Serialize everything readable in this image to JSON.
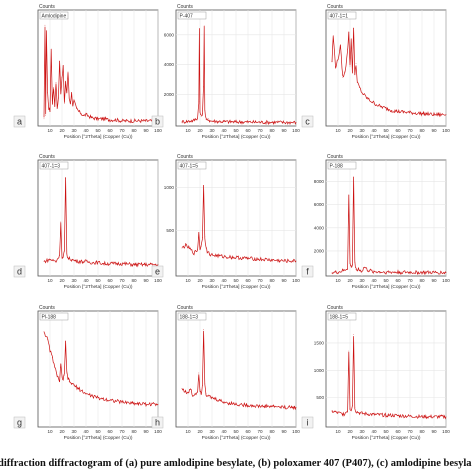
{
  "caption": "diffraction diffractogram of (a) pure amlodipine besylate, (b) poloxamer 407 (P407), (c) amlodipine besyla",
  "colors": {
    "trace": "#cc1111",
    "frame": "#555555",
    "grid": "#e6e6e6",
    "label_box": "#ffffff"
  },
  "chart_data": [
    {
      "panel": "a",
      "type": "line",
      "tag": "Amlodipine",
      "ylabel": "Counts",
      "xlabel": "Position [°2Theta] (Copper (Cu))",
      "yticks": [],
      "xlim": [
        0,
        100
      ],
      "ylim": [
        0,
        100
      ],
      "x": [
        5,
        5.8,
        6.4,
        7,
        8,
        9,
        10,
        11,
        12,
        13,
        14,
        15,
        16,
        17,
        18,
        19,
        20,
        21,
        22,
        23,
        24,
        25,
        26,
        27,
        28,
        29,
        30,
        32,
        34,
        36,
        38,
        40,
        45,
        50,
        55,
        60,
        65,
        70,
        75,
        80,
        85,
        90,
        95,
        100
      ],
      "y": [
        5,
        95,
        8,
        90,
        30,
        15,
        12,
        72,
        20,
        35,
        18,
        40,
        15,
        25,
        60,
        30,
        45,
        55,
        20,
        40,
        30,
        50,
        25,
        20,
        30,
        18,
        22,
        15,
        12,
        10,
        8,
        9,
        6,
        5,
        5,
        4,
        4,
        3,
        3,
        3,
        3,
        3,
        3,
        3
      ]
    },
    {
      "panel": "b",
      "type": "line",
      "tag": "P-407",
      "ylabel": "Counts",
      "xlabel": "Position [°2Theta] (Copper (Cu))",
      "yticks": [
        2000,
        4000,
        6000
      ],
      "xlim": [
        0,
        100
      ],
      "ylim": [
        0,
        7000
      ],
      "x": [
        5,
        10,
        15,
        18,
        19,
        19.5,
        20,
        21,
        22,
        23,
        23.5,
        24,
        25,
        26,
        27,
        28,
        30,
        35,
        40,
        45,
        50,
        55,
        60,
        70,
        80,
        90,
        100
      ],
      "y": [
        150,
        180,
        250,
        400,
        1500,
        6400,
        800,
        500,
        700,
        2500,
        6600,
        900,
        300,
        250,
        350,
        220,
        200,
        180,
        160,
        150,
        140,
        140,
        130,
        120,
        120,
        110,
        110
      ]
    },
    {
      "panel": "c",
      "type": "line",
      "tag": "407-1=1",
      "ylabel": "Counts",
      "xlabel": "Position [°2Theta] (Copper (Cu))",
      "yticks": [],
      "xlim": [
        0,
        100
      ],
      "ylim": [
        0,
        100
      ],
      "x": [
        5,
        6,
        8,
        10,
        12,
        14,
        16,
        18,
        19,
        20,
        21,
        22,
        23,
        24,
        25,
        26,
        28,
        30,
        35,
        40,
        45,
        50,
        55,
        60,
        70,
        80,
        90,
        100
      ],
      "y": [
        60,
        85,
        55,
        62,
        75,
        45,
        50,
        72,
        88,
        55,
        82,
        50,
        92,
        48,
        58,
        40,
        35,
        30,
        24,
        20,
        17,
        15,
        13,
        12,
        11,
        10,
        9,
        9
      ]
    },
    {
      "panel": "d",
      "type": "line",
      "tag": "407-1=3",
      "ylabel": "Counts",
      "xlabel": "Position [°2Theta] (Copper (Cu))",
      "yticks": [],
      "xlim": [
        0,
        100
      ],
      "ylim": [
        0,
        100
      ],
      "x": [
        5,
        10,
        15,
        18,
        19,
        20,
        21,
        22,
        23,
        24,
        25,
        28,
        30,
        35,
        40,
        45,
        50,
        55,
        60,
        70,
        80,
        90,
        100
      ],
      "y": [
        12,
        14,
        12,
        18,
        50,
        15,
        16,
        22,
        92,
        20,
        15,
        14,
        13,
        12,
        12,
        11,
        11,
        10,
        10,
        10,
        9,
        9,
        9
      ]
    },
    {
      "panel": "e",
      "type": "line",
      "tag": "407-1=5",
      "ylabel": "Counts",
      "xlabel": "Position [°2Theta] (Copper (Cu))",
      "yticks": [
        500,
        1000
      ],
      "xlim": [
        0,
        100
      ],
      "ylim": [
        0,
        1200
      ],
      "x": [
        5,
        8,
        10,
        15,
        18,
        19,
        20,
        21,
        22,
        23,
        24,
        25,
        26,
        28,
        30,
        35,
        40,
        50,
        60,
        70,
        80,
        90,
        100
      ],
      "y": [
        300,
        330,
        310,
        240,
        280,
        480,
        290,
        320,
        420,
        1020,
        430,
        300,
        260,
        230,
        220,
        210,
        200,
        190,
        180,
        170,
        160,
        150,
        150
      ]
    },
    {
      "panel": "f",
      "type": "line",
      "tag": "P-188",
      "ylabel": "Counts",
      "xlabel": "Position [°2Theta] (Copper (Cu))",
      "yticks": [
        2000,
        4000,
        6000,
        8000
      ],
      "xlim": [
        0,
        100
      ],
      "ylim": [
        0,
        9000
      ],
      "x": [
        5,
        10,
        15,
        18,
        19,
        20,
        21,
        22,
        23,
        24,
        25,
        26,
        27,
        28,
        30,
        32,
        35,
        40,
        45,
        50,
        60,
        70,
        80,
        90,
        100
      ],
      "y": [
        100,
        150,
        300,
        500,
        6800,
        900,
        600,
        800,
        8400,
        1000,
        400,
        350,
        500,
        300,
        250,
        600,
        300,
        200,
        180,
        160,
        150,
        140,
        130,
        120,
        120
      ]
    },
    {
      "panel": "g",
      "type": "line",
      "tag": "Pl-188",
      "ylabel": "Counts",
      "xlabel": "Position [°2Theta] (Copper (Cu))",
      "yticks": [],
      "xlim": [
        0,
        100
      ],
      "ylim": [
        0,
        100
      ],
      "x": [
        5,
        8,
        10,
        12,
        14,
        16,
        18,
        19,
        20,
        21,
        22,
        23,
        24,
        25,
        26,
        28,
        30,
        35,
        40,
        45,
        50,
        60,
        70,
        80,
        90,
        100
      ],
      "y": [
        90,
        82,
        72,
        65,
        55,
        48,
        42,
        58,
        46,
        44,
        48,
        80,
        50,
        45,
        42,
        40,
        38,
        34,
        30,
        28,
        26,
        24,
        22,
        21,
        20,
        20
      ]
    },
    {
      "panel": "h",
      "type": "line",
      "tag": "188-1=3",
      "ylabel": "Counts",
      "xlabel": "Position [°2Theta] (Copper (Cu))",
      "yticks": [],
      "xlim": [
        0,
        100
      ],
      "ylim": [
        0,
        100
      ],
      "x": [
        5,
        8,
        10,
        12,
        14,
        16,
        18,
        19,
        20,
        21,
        22,
        23,
        24,
        25,
        26,
        28,
        30,
        35,
        40,
        45,
        50,
        60,
        70,
        80,
        90,
        100
      ],
      "y": [
        35,
        32,
        30,
        35,
        28,
        30,
        32,
        50,
        34,
        30,
        38,
        92,
        40,
        30,
        28,
        27,
        26,
        24,
        22,
        21,
        20,
        19,
        18,
        18,
        17,
        17
      ]
    },
    {
      "panel": "i",
      "type": "line",
      "tag": "188-1=5",
      "ylabel": "Counts",
      "xlabel": "Position [°2Theta] (Copper (Cu))",
      "yticks": [
        500,
        1000,
        1500
      ],
      "xlim": [
        0,
        100
      ],
      "ylim": [
        0,
        1900
      ],
      "x": [
        5,
        10,
        15,
        18,
        19,
        20,
        21,
        22,
        23,
        24,
        25,
        28,
        30,
        35,
        40,
        50,
        60,
        70,
        80,
        90,
        100
      ],
      "y": [
        250,
        220,
        200,
        260,
        1350,
        300,
        280,
        350,
        1650,
        320,
        250,
        220,
        210,
        200,
        190,
        180,
        170,
        160,
        150,
        150,
        150
      ]
    }
  ]
}
